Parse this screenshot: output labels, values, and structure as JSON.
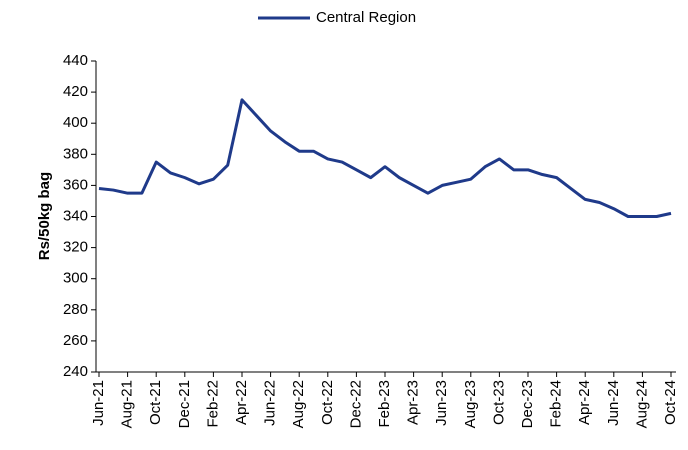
{
  "chart_data": {
    "type": "line",
    "y_label": "Rs/50kg bag",
    "categories": [
      "Jun-21",
      null,
      "Aug-21",
      null,
      "Oct-21",
      null,
      "Dec-21",
      null,
      "Feb-22",
      null,
      "Apr-22",
      null,
      "Jun-22",
      null,
      "Aug-22",
      null,
      "Oct-22",
      null,
      "Dec-22",
      null,
      "Feb-23",
      null,
      "Apr-23",
      null,
      "Jun-23",
      null,
      "Aug-23",
      null,
      "Oct-23",
      null,
      "Dec-23",
      null,
      "Feb-24",
      null,
      "Apr-24",
      null,
      "Jun-24",
      null,
      "Aug-24",
      null,
      "Oct-24"
    ],
    "series": [
      {
        "name": "Central Region",
        "color": "#1f3a8a",
        "values": [
          358,
          357,
          355,
          355,
          375,
          368,
          365,
          361,
          364,
          373,
          415,
          405,
          395,
          388,
          382,
          382,
          377,
          375,
          370,
          365,
          372,
          365,
          360,
          355,
          360,
          362,
          364,
          372,
          377,
          370,
          370,
          367,
          365,
          358,
          351,
          349,
          345,
          340,
          340,
          340,
          342
        ]
      }
    ],
    "ylim": [
      240,
      440
    ],
    "yticks": [
      240,
      260,
      280,
      300,
      320,
      340,
      360,
      380,
      400,
      420,
      440
    ],
    "legend": "top"
  }
}
